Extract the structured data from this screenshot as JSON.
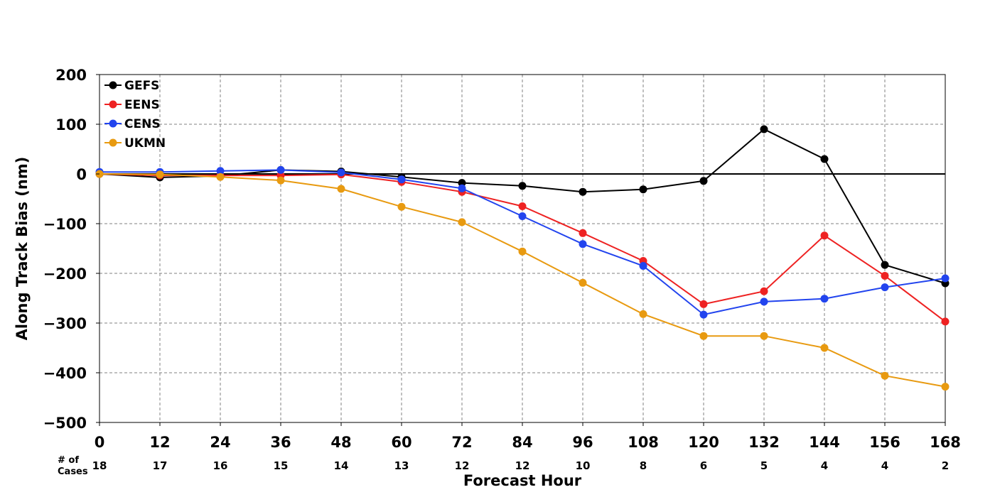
{
  "chart_data": {
    "type": "line",
    "xlabel": "Forecast Hour",
    "ylabel": "Along Track Bias (nm)",
    "x": [
      0,
      12,
      24,
      36,
      48,
      60,
      72,
      84,
      96,
      108,
      120,
      132,
      144,
      156,
      168
    ],
    "xlim": [
      0,
      168
    ],
    "ylim": [
      -500,
      200
    ],
    "yticks": [
      200,
      100,
      0,
      -100,
      -200,
      -300,
      -400,
      -500
    ],
    "grid": true,
    "legend_position": "top-left",
    "cases_title": "# of Cases",
    "cases": [
      18,
      17,
      16,
      15,
      14,
      13,
      12,
      12,
      10,
      8,
      6,
      5,
      4,
      4,
      2
    ],
    "series": [
      {
        "name": "GEFS",
        "color": "#000000",
        "values": [
          0,
          -7,
          -4,
          8,
          5,
          -6,
          -18,
          -24,
          -36,
          -31,
          -14,
          90,
          30,
          -183,
          -220
        ]
      },
      {
        "name": "EENS",
        "color": "#ee2222",
        "values": [
          0,
          -3,
          -3,
          -3,
          -1,
          -16,
          -36,
          -65,
          -119,
          -175,
          -262,
          -236,
          -124,
          -205,
          -297
        ]
      },
      {
        "name": "CENS",
        "color": "#2244ee",
        "values": [
          4,
          4,
          6,
          8,
          3,
          -11,
          -29,
          -85,
          -141,
          -185,
          -283,
          -257,
          -251,
          -228,
          -210
        ]
      },
      {
        "name": "UKMN",
        "color": "#e89a10",
        "values": [
          0,
          -1,
          -6,
          -13,
          -30,
          -66,
          -97,
          -156,
          -219,
          -282,
          -326,
          -326,
          -350,
          -406,
          -428
        ]
      }
    ]
  }
}
